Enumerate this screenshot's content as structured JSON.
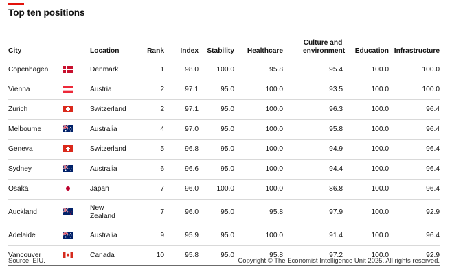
{
  "title": "Top ten positions",
  "columns": {
    "city": "City",
    "location": "Location",
    "rank": "Rank",
    "index": "Index",
    "stability": "Stability",
    "healthcare": "Healthcare",
    "culture": "Culture and environment",
    "education": "Education",
    "infrastructure": "Infrastructure"
  },
  "rows": [
    {
      "city": "Copenhagen",
      "flag": "denmark-flag-icon",
      "location": "Denmark",
      "rank": "1",
      "index": "98.0",
      "stability": "100.0",
      "healthcare": "95.8",
      "culture": "95.4",
      "education": "100.0",
      "infrastructure": "100.0"
    },
    {
      "city": "Vienna",
      "flag": "austria-flag-icon",
      "location": "Austria",
      "rank": "2",
      "index": "97.1",
      "stability": "95.0",
      "healthcare": "100.0",
      "culture": "93.5",
      "education": "100.0",
      "infrastructure": "100.0"
    },
    {
      "city": "Zurich",
      "flag": "switzerland-flag-icon",
      "location": "Switzerland",
      "rank": "2",
      "index": "97.1",
      "stability": "95.0",
      "healthcare": "100.0",
      "culture": "96.3",
      "education": "100.0",
      "infrastructure": "96.4"
    },
    {
      "city": "Melbourne",
      "flag": "australia-flag-icon",
      "location": "Australia",
      "rank": "4",
      "index": "97.0",
      "stability": "95.0",
      "healthcare": "100.0",
      "culture": "95.8",
      "education": "100.0",
      "infrastructure": "96.4"
    },
    {
      "city": "Geneva",
      "flag": "switzerland-flag-icon",
      "location": "Switzerland",
      "rank": "5",
      "index": "96.8",
      "stability": "95.0",
      "healthcare": "100.0",
      "culture": "94.9",
      "education": "100.0",
      "infrastructure": "96.4"
    },
    {
      "city": "Sydney",
      "flag": "australia-flag-icon",
      "location": "Australia",
      "rank": "6",
      "index": "96.6",
      "stability": "95.0",
      "healthcare": "100.0",
      "culture": "94.4",
      "education": "100.0",
      "infrastructure": "96.4"
    },
    {
      "city": "Osaka",
      "flag": "japan-flag-icon",
      "location": "Japan",
      "rank": "7",
      "index": "96.0",
      "stability": "100.0",
      "healthcare": "100.0",
      "culture": "86.8",
      "education": "100.0",
      "infrastructure": "96.4"
    },
    {
      "city": "Auckland",
      "flag": "new-zealand-flag-icon",
      "location": "New Zealand",
      "rank": "7",
      "index": "96.0",
      "stability": "95.0",
      "healthcare": "95.8",
      "culture": "97.9",
      "education": "100.0",
      "infrastructure": "92.9"
    },
    {
      "city": "Adelaide",
      "flag": "australia-flag-icon",
      "location": "Australia",
      "rank": "9",
      "index": "95.9",
      "stability": "95.0",
      "healthcare": "100.0",
      "culture": "91.4",
      "education": "100.0",
      "infrastructure": "96.4"
    },
    {
      "city": "Vancouver",
      "flag": "canada-flag-icon",
      "location": "Canada",
      "rank": "10",
      "index": "95.8",
      "stability": "95.0",
      "healthcare": "95.8",
      "culture": "97.2",
      "education": "100.0",
      "infrastructure": "92.9"
    }
  ],
  "source": "Source: EIU.",
  "copyright": "Copyright © The Economist Intelligence Unit 2025. All rights reserved.",
  "colors": {
    "accent": "#e3120b"
  }
}
